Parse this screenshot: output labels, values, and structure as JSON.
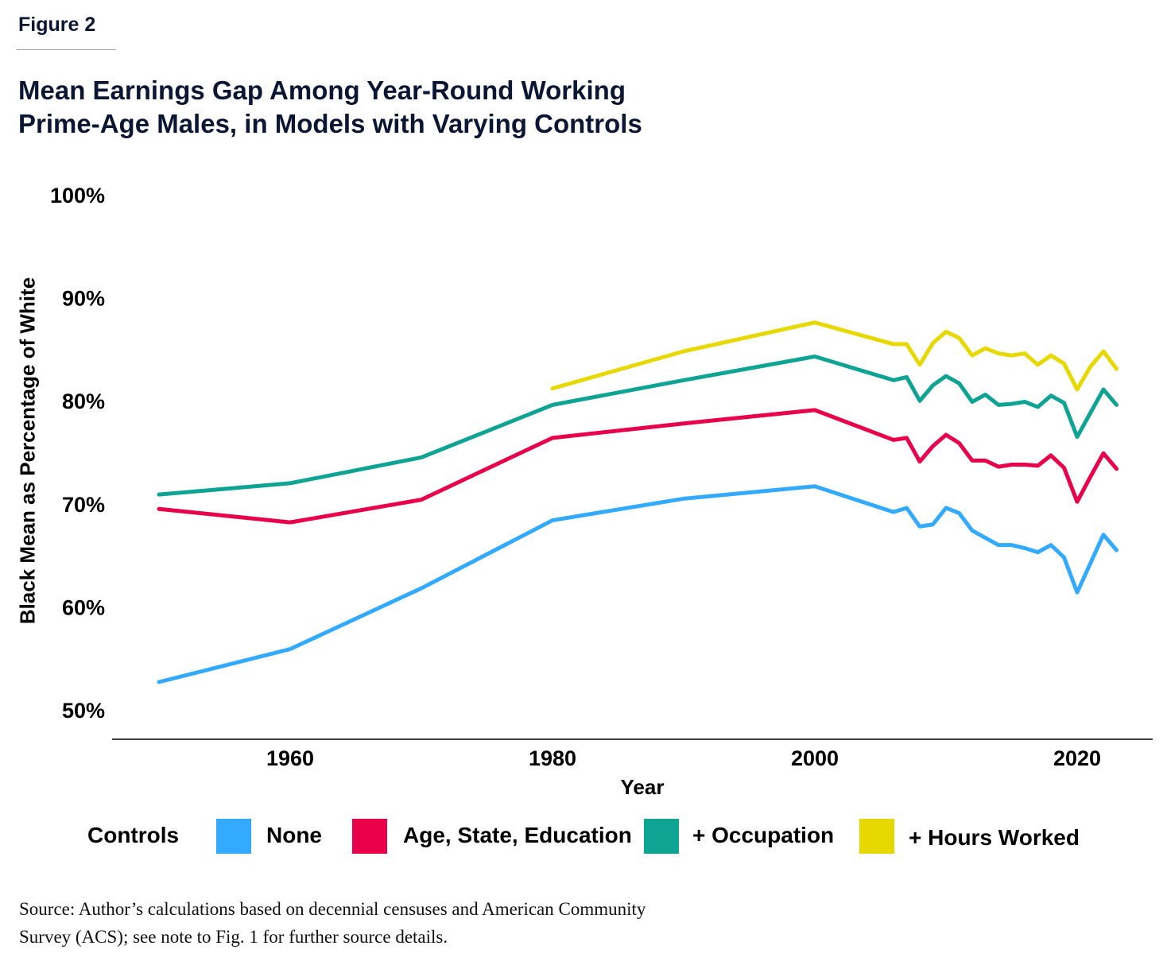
{
  "figure_label": "Figure 2",
  "title_line1": "Mean Earnings Gap Among Year-Round Working",
  "title_line2": "Prime-Age Males, in Models with Varying Controls",
  "source_line1": "Source: Author’s calculations based on decennial censuses and American Community",
  "source_line2": "Survey (ACS); see note to Fig. 1 for further source details.",
  "chart_data": {
    "type": "line",
    "title": "Mean Earnings Gap Among Year-Round Working Prime-Age Males, in Models with Varying Controls",
    "xlabel": "Year",
    "ylabel": "Black Mean as Percentage of White",
    "xlim": [
      1950,
      2023
    ],
    "ylim": [
      50,
      100
    ],
    "xticks": [
      1960,
      1980,
      2000,
      2020
    ],
    "xtick_labels": [
      "1960",
      "1980",
      "2000",
      "2020"
    ],
    "yticks": [
      100,
      90,
      80,
      70,
      60,
      50
    ],
    "ytick_labels": [
      "100%",
      "90%",
      "80%",
      "70%",
      "60%",
      "50%"
    ],
    "grid": false,
    "legend_title": "Controls",
    "legend_position": "bottom",
    "series": [
      {
        "name": "None",
        "color": "#33aaff",
        "x": [
          1950,
          1960,
          1970,
          1980,
          1990,
          2000,
          2006,
          2007,
          2008,
          2009,
          2010,
          2011,
          2012,
          2013,
          2014,
          2015,
          2016,
          2017,
          2018,
          2019,
          2020,
          2021,
          2022,
          2023
        ],
        "values": [
          52.7,
          55.9,
          61.8,
          68.4,
          70.5,
          71.7,
          69.2,
          69.6,
          67.8,
          68.0,
          69.6,
          69.1,
          67.4,
          66.7,
          66.0,
          66.0,
          65.7,
          65.3,
          66.0,
          64.8,
          61.4,
          64.2,
          67.0,
          65.5
        ]
      },
      {
        "name": "Age, State, Education",
        "color": "#e8004a",
        "x": [
          1950,
          1960,
          1970,
          1980,
          1990,
          2000,
          2006,
          2007,
          2008,
          2009,
          2010,
          2011,
          2012,
          2013,
          2014,
          2015,
          2016,
          2017,
          2018,
          2019,
          2020,
          2021,
          2022,
          2023
        ],
        "values": [
          69.5,
          68.2,
          70.4,
          76.4,
          77.8,
          79.1,
          76.2,
          76.4,
          74.1,
          75.6,
          76.7,
          75.9,
          74.2,
          74.2,
          73.6,
          73.8,
          73.8,
          73.7,
          74.7,
          73.5,
          70.2,
          72.6,
          74.9,
          73.4
        ]
      },
      {
        "name": "+ Occupation",
        "color": "#0fa394",
        "x": [
          1950,
          1960,
          1970,
          1980,
          1990,
          2000,
          2006,
          2007,
          2008,
          2009,
          2010,
          2011,
          2012,
          2013,
          2014,
          2015,
          2016,
          2017,
          2018,
          2019,
          2020,
          2021,
          2022,
          2023
        ],
        "values": [
          70.9,
          72.0,
          74.5,
          79.6,
          82.0,
          84.3,
          82.0,
          82.3,
          80.0,
          81.5,
          82.4,
          81.7,
          79.9,
          80.6,
          79.6,
          79.7,
          79.9,
          79.4,
          80.5,
          79.8,
          76.5,
          78.8,
          81.1,
          79.6
        ]
      },
      {
        "name": "+ Hours Worked",
        "color": "#e6d800",
        "x": [
          1980,
          1990,
          2000,
          2006,
          2007,
          2008,
          2009,
          2010,
          2011,
          2012,
          2013,
          2014,
          2015,
          2016,
          2017,
          2018,
          2019,
          2020,
          2021,
          2022,
          2023
        ],
        "values": [
          81.2,
          84.8,
          87.6,
          85.5,
          85.5,
          83.5,
          85.6,
          86.7,
          86.1,
          84.4,
          85.1,
          84.6,
          84.4,
          84.6,
          83.5,
          84.4,
          83.6,
          81.1,
          83.3,
          84.8,
          83.1
        ]
      }
    ]
  }
}
